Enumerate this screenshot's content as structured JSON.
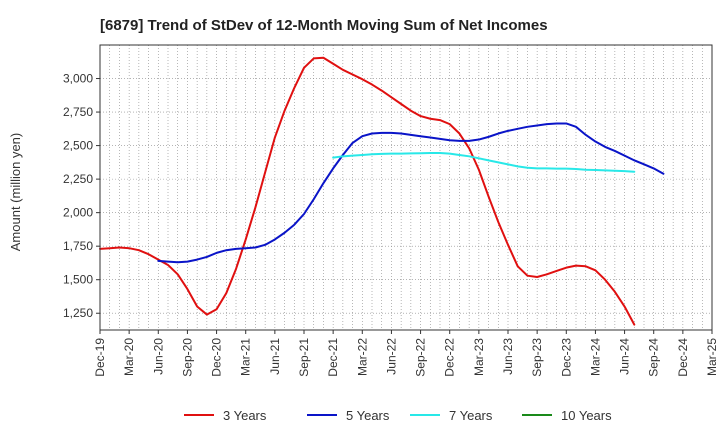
{
  "chart_data": {
    "type": "line",
    "title": "[6879]  Trend of StDev of 12-Month Moving Sum of Net Incomes",
    "ylabel": "Amount (million yen)",
    "xlabel": "",
    "ylim": [
      1125,
      3250
    ],
    "yticks": [
      1250,
      1500,
      1750,
      2000,
      2250,
      2500,
      2750,
      3000
    ],
    "ytick_labels": [
      "1,250",
      "1,500",
      "1,750",
      "2,000",
      "2,250",
      "2,500",
      "2,750",
      "3,000"
    ],
    "x_categories": [
      "Dec-19",
      "Mar-20",
      "Jun-20",
      "Sep-20",
      "Dec-20",
      "Mar-21",
      "Jun-21",
      "Sep-21",
      "Dec-21",
      "Mar-22",
      "Jun-22",
      "Sep-22",
      "Dec-22",
      "Mar-23",
      "Jun-23",
      "Sep-23",
      "Dec-23",
      "Mar-24",
      "Jun-24",
      "Sep-24",
      "Dec-24",
      "Mar-25"
    ],
    "grid": true,
    "legend_position": "bottom",
    "series": [
      {
        "name": "3 Years",
        "color": "#e01010",
        "start_index": 0,
        "values": [
          1730,
          1735,
          1740,
          1735,
          1720,
          1690,
          1650,
          1610,
          1540,
          1430,
          1300,
          1240,
          1280,
          1400,
          1580,
          1800,
          2040,
          2300,
          2560,
          2760,
          2930,
          3080,
          3150,
          3155,
          3110,
          3065,
          3030,
          2995,
          2955,
          2910,
          2860,
          2810,
          2760,
          2720,
          2700,
          2690,
          2660,
          2590,
          2480,
          2320,
          2120,
          1930,
          1760,
          1600,
          1530,
          1520,
          1540,
          1565,
          1590,
          1605,
          1600,
          1570,
          1500,
          1410,
          1300,
          1165
        ]
      },
      {
        "name": "5 Years",
        "color": "#0a14c8",
        "start_index": 6,
        "values": [
          1640,
          1635,
          1630,
          1635,
          1650,
          1670,
          1700,
          1720,
          1730,
          1735,
          1740,
          1760,
          1800,
          1850,
          1910,
          1990,
          2100,
          2220,
          2330,
          2430,
          2520,
          2570,
          2590,
          2595,
          2595,
          2590,
          2580,
          2570,
          2560,
          2550,
          2540,
          2535,
          2535,
          2545,
          2565,
          2590,
          2610,
          2625,
          2640,
          2650,
          2660,
          2665,
          2665,
          2640,
          2580,
          2530,
          2490,
          2460,
          2425,
          2390,
          2360,
          2330,
          2290
        ]
      },
      {
        "name": "7 Years",
        "color": "#28e8e8",
        "start_index": 24,
        "values": [
          2410,
          2420,
          2425,
          2430,
          2435,
          2438,
          2440,
          2440,
          2442,
          2443,
          2445,
          2445,
          2440,
          2430,
          2420,
          2405,
          2390,
          2375,
          2360,
          2345,
          2335,
          2330,
          2330,
          2328,
          2328,
          2325,
          2320,
          2318,
          2315,
          2312,
          2310,
          2305
        ]
      },
      {
        "name": "10 Years",
        "color": "#1a8a1a",
        "start_index": 0,
        "values": []
      }
    ]
  }
}
